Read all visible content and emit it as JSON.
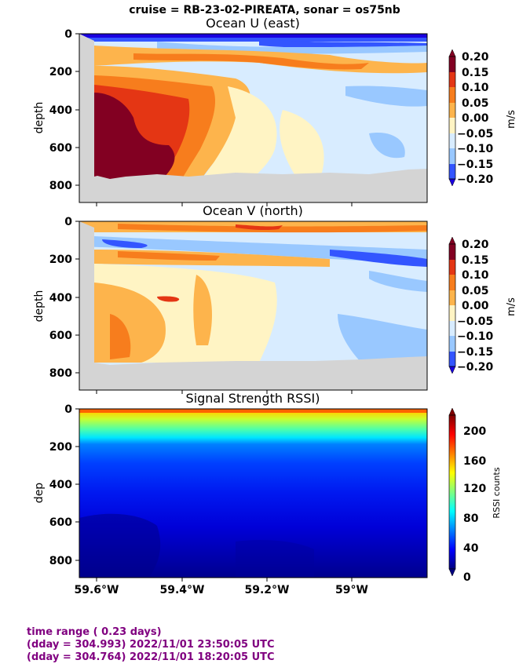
{
  "suptitle": "cruise = RB-23-02-PIREATA,  sonar = os75nb",
  "chart_data": [
    {
      "type": "heatmap",
      "title": "Ocean U (east)",
      "ylabel": "depth",
      "y_ticks": [
        "0",
        "200",
        "400",
        "600",
        "800"
      ],
      "ylim": [
        880,
        0
      ],
      "xlim": [
        -59.64,
        -58.81
      ],
      "colorbar": {
        "label": "m/s",
        "ticks": [
          "0.20",
          "0.15",
          "0.10",
          "0.05",
          "0.00",
          "−0.05",
          "−0.10",
          "−0.15",
          "−0.20"
        ],
        "colors": [
          "#1a00e0",
          "#3355ff",
          "#99c8ff",
          "#d8ecff",
          "#fff4c4",
          "#fdb44c",
          "#f77d1d",
          "#e43614",
          "#820022"
        ]
      },
      "field_summary": "Strong eastward flow (>0.20 m/s) at 300-750 m near 59.55W; westward surface layer; weak flow elsewhere"
    },
    {
      "type": "heatmap",
      "title": "Ocean V (north)",
      "ylabel": "depth",
      "y_ticks": [
        "0",
        "200",
        "400",
        "600",
        "800"
      ],
      "ylim": [
        880,
        0
      ],
      "xlim": [
        -59.64,
        -58.81
      ],
      "colorbar": {
        "label": "m/s",
        "ticks": [
          "0.20",
          "0.15",
          "0.10",
          "0.05",
          "0.00",
          "−0.05",
          "−0.10",
          "−0.15",
          "−0.20"
        ],
        "colors": [
          "#1a00e0",
          "#3355ff",
          "#99c8ff",
          "#d8ecff",
          "#fff4c4",
          "#fdb44c",
          "#f77d1d",
          "#e43614",
          "#820022"
        ]
      },
      "field_summary": "Northward flow at surface and west side at depth; southward layer near 100-200 m east side"
    },
    {
      "type": "heatmap",
      "title": "Signal Strength RSSI)",
      "ylabel": "dep",
      "y_ticks": [
        "0",
        "200",
        "400",
        "600",
        "800"
      ],
      "ylim": [
        880,
        0
      ],
      "x_ticks": [
        "59.6°W",
        "59.4°W",
        "59.2°W",
        "59°W"
      ],
      "x_values": [
        -59.6,
        -59.4,
        -59.2,
        -59.0
      ],
      "colorbar": {
        "label": "RSSI counts",
        "ticks": [
          "200",
          "160",
          "120",
          "80",
          "40",
          "0"
        ],
        "range": [
          0,
          225
        ]
      },
      "field_summary": "RSSI decreases with depth from ~200 near surface to ~20 at 850 m"
    }
  ],
  "footer": {
    "line1": "time range ( 0.23 days)",
    "line2": "(dday = 304.993) 2022/11/01 23:50:05 UTC",
    "line3": "(dday = 304.764) 2022/11/01 18:20:05 UTC"
  }
}
